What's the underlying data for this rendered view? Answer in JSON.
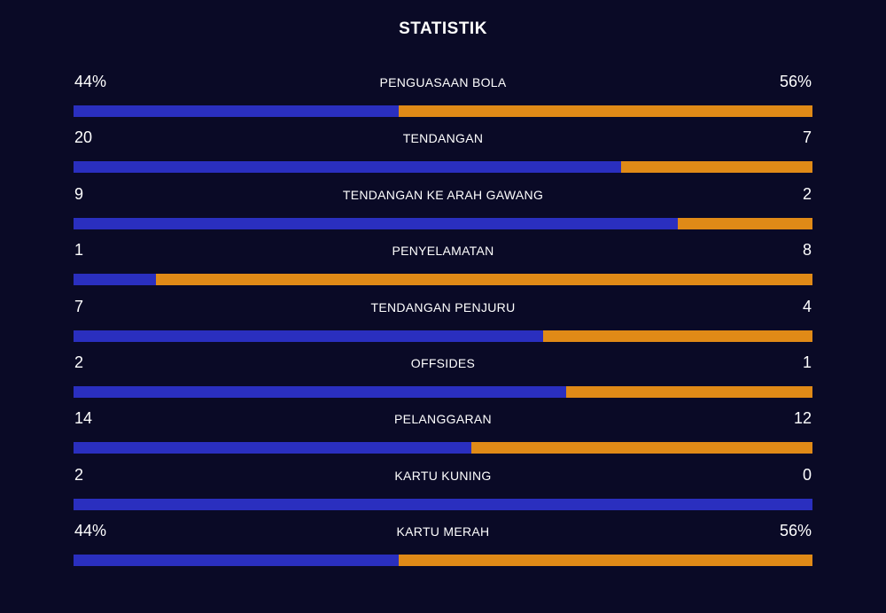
{
  "title": "STATISTIK",
  "colors": {
    "background": "#0a0a26",
    "home": "#2a2fbf",
    "away": "#e08a17"
  },
  "stats": [
    {
      "label": "PENGUASAAN BOLA",
      "left": "44%",
      "right": "56%",
      "home_share": 0.44
    },
    {
      "label": "TENDANGAN",
      "left": "20",
      "right": "7",
      "home_share": 0.741
    },
    {
      "label": "TENDANGAN KE ARAH GAWANG",
      "left": "9",
      "right": "2",
      "home_share": 0.818
    },
    {
      "label": "PENYELAMATAN",
      "left": "1",
      "right": "8",
      "home_share": 0.111
    },
    {
      "label": "TENDANGAN PENJURU",
      "left": "7",
      "right": "4",
      "home_share": 0.636
    },
    {
      "label": "OFFSIDES",
      "left": "2",
      "right": "1",
      "home_share": 0.667
    },
    {
      "label": "PELANGGARAN",
      "left": "14",
      "right": "12",
      "home_share": 0.538
    },
    {
      "label": "KARTU KUNING",
      "left": "2",
      "right": "0",
      "home_share": 1.0
    },
    {
      "label": "KARTU MERAH",
      "left": "44%",
      "right": "56%",
      "home_share": 0.44
    }
  ]
}
